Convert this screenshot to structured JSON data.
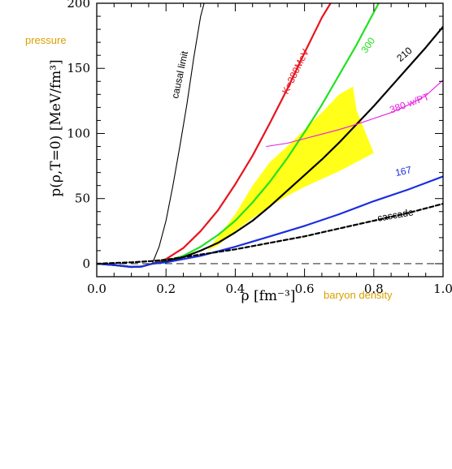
{
  "chart_data": {
    "type": "line",
    "title": "",
    "xlabel": "ρ  [fm⁻³]",
    "ylabel": "p(ρ,T=0)  [MeV/fm³]",
    "xlim": [
      0.0,
      1.0
    ],
    "ylim": [
      -10,
      200
    ],
    "x_ticks": [
      "0.0",
      "0.2",
      "0.4",
      "0.6",
      "0.8",
      "1.0"
    ],
    "y_ticks": [
      "0",
      "50",
      "100",
      "150",
      "200"
    ],
    "x_tick_values": [
      0.0,
      0.2,
      0.4,
      0.6,
      0.8,
      1.0
    ],
    "y_tick_values": [
      0,
      50,
      100,
      150,
      200
    ],
    "annotations": {
      "pressure": "pressure",
      "baryon_density": "baryon density"
    },
    "grid": false,
    "zero_line": true,
    "series": [
      {
        "label": "causal limit",
        "color": "#000000",
        "style": "solid-thin",
        "x": [
          0.16,
          0.18,
          0.2,
          0.22,
          0.24,
          0.26,
          0.28,
          0.3,
          0.31
        ],
        "y": [
          0,
          13,
          33,
          60,
          90,
          122,
          158,
          190,
          200
        ]
      },
      {
        "label": "K=380MeV",
        "color": "#e8141c",
        "style": "solid",
        "x": [
          0.0,
          0.05,
          0.1,
          0.13,
          0.16,
          0.2,
          0.25,
          0.3,
          0.35,
          0.4,
          0.45,
          0.5,
          0.55,
          0.6,
          0.65,
          0.675
        ],
        "y": [
          0,
          -1,
          -2.5,
          -2.2,
          0,
          3.5,
          12,
          25,
          41,
          61,
          83,
          108,
          134,
          162,
          189,
          200
        ]
      },
      {
        "label": "300",
        "color": "#22e21f",
        "style": "solid",
        "x": [
          0.0,
          0.05,
          0.1,
          0.13,
          0.16,
          0.2,
          0.25,
          0.3,
          0.35,
          0.4,
          0.45,
          0.5,
          0.55,
          0.6,
          0.65,
          0.7,
          0.75,
          0.8,
          0.814
        ],
        "y": [
          0,
          -1,
          -2.5,
          -2.2,
          0,
          2,
          6,
          13,
          22,
          33,
          47,
          63,
          81,
          101,
          122,
          145,
          168,
          193,
          200
        ]
      },
      {
        "label": "210",
        "color": "#000000",
        "style": "solid",
        "x": [
          0.0,
          0.05,
          0.1,
          0.13,
          0.16,
          0.2,
          0.25,
          0.3,
          0.35,
          0.4,
          0.45,
          0.5,
          0.55,
          0.6,
          0.65,
          0.7,
          0.75,
          0.8,
          0.85,
          0.9,
          0.95,
          1.0
        ],
        "y": [
          0,
          -1,
          -2.5,
          -2.2,
          0,
          1.5,
          5,
          10,
          16,
          24,
          33,
          44,
          56,
          68,
          80,
          93,
          107,
          121,
          136,
          151,
          166,
          182
        ]
      },
      {
        "label": "380 w/PT",
        "color": "#e81ce3",
        "style": "solid-thin",
        "x": [
          0.49,
          0.55,
          0.6,
          0.65,
          0.7,
          0.75,
          0.8,
          0.85,
          0.9,
          0.95,
          1.0
        ],
        "y": [
          90,
          92.5,
          96,
          99.5,
          103,
          107,
          111.5,
          116,
          122,
          129,
          141
        ]
      },
      {
        "label": "167",
        "color": "#1a2ee0",
        "style": "solid",
        "x": [
          0.0,
          0.05,
          0.1,
          0.13,
          0.16,
          0.2,
          0.3,
          0.4,
          0.5,
          0.6,
          0.7,
          0.8,
          0.9,
          1.0
        ],
        "y": [
          0,
          -1,
          -2.5,
          -2.2,
          0,
          1,
          6,
          13,
          21,
          29,
          38,
          48,
          57,
          67
        ]
      },
      {
        "label": "cascade",
        "color": "#000000",
        "style": "dashed",
        "x": [
          0.0,
          0.05,
          0.1,
          0.16,
          0.2,
          0.3,
          0.4,
          0.5,
          0.6,
          0.7,
          0.8,
          0.9,
          1.0
        ],
        "y": [
          0,
          0.5,
          1,
          2,
          3,
          7,
          11,
          16,
          21,
          27,
          33,
          39,
          46
        ]
      }
    ],
    "band": {
      "color": "#ffff1a",
      "x": [
        0.32,
        0.4,
        0.45,
        0.5,
        0.55,
        0.6,
        0.65,
        0.7,
        0.74,
        0.75,
        0.78,
        0.8,
        0.75,
        0.7,
        0.65,
        0.6,
        0.55,
        0.5,
        0.45,
        0.4,
        0.35,
        0.32
      ],
      "y": [
        10,
        38,
        60,
        78,
        90,
        103,
        116,
        130,
        136,
        118,
        98,
        85,
        78,
        71,
        65,
        59,
        52,
        44,
        35,
        25,
        14,
        10
      ]
    }
  }
}
